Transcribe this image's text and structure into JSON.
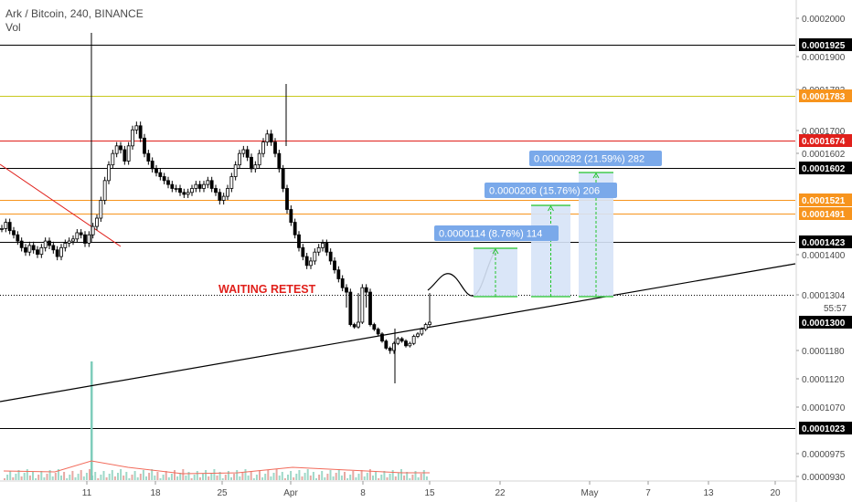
{
  "header": {
    "title": "Ark / Bitcoin, 240, BINANCE",
    "volume_label": "Vol"
  },
  "chart_data": {
    "type": "candlestick",
    "symbol": "Ark / Bitcoin",
    "interval": "240",
    "exchange": "BINANCE",
    "x_ticks": [
      "11",
      "18",
      "25",
      "Apr",
      "8",
      "15",
      "22",
      "May",
      "7",
      "13",
      "20"
    ],
    "y_ticks": [
      "0.0002000",
      "0.0001900",
      "0.0001783",
      "0.0001700",
      "0.0001602",
      "0.0001400",
      "0.0001304",
      "0.0001180",
      "0.0001120",
      "0.0001070",
      "0.0000975",
      "0.0000930"
    ],
    "price_labels": [
      {
        "value": 0.0001925,
        "text": "0.0001925",
        "color": "#000000"
      },
      {
        "value": 0.0001783,
        "text": "0.0001783",
        "color": "#f7941d"
      },
      {
        "value": 0.0001674,
        "text": "0.0001674",
        "color": "#e0201b"
      },
      {
        "value": 0.0001602,
        "text": "0.0001602",
        "color": "#000000"
      },
      {
        "value": 0.0001521,
        "text": "0.0001521",
        "color": "#f7941d"
      },
      {
        "value": 0.0001491,
        "text": "0.0001491",
        "color": "#f7941d"
      },
      {
        "value": 0.0001423,
        "text": "0.0001423",
        "color": "#000000"
      },
      {
        "value": 0.00013,
        "text": "0.0001300",
        "color": "#000000"
      },
      {
        "value": 0.0001023,
        "text": "0.0001023",
        "color": "#000000"
      }
    ],
    "countdown": "55:57",
    "horizontal_lines": [
      {
        "value": 0.0001925,
        "color": "#000000"
      },
      {
        "value": 0.0001783,
        "color": "#c8c81e"
      },
      {
        "value": 0.0001674,
        "color": "#e0201b"
      },
      {
        "value": 0.0001602,
        "color": "#000000"
      },
      {
        "value": 0.0001521,
        "color": "#f7941d"
      },
      {
        "value": 0.0001491,
        "color": "#f7941d"
      },
      {
        "value": 0.0001423,
        "color": "#000000"
      },
      {
        "value": 0.0001304,
        "color": "#000000",
        "style": "dotted"
      },
      {
        "value": 0.0001023,
        "color": "#000000"
      }
    ],
    "annotation": {
      "text": "WAITING RETEST",
      "color": "#e0201b"
    },
    "targets": [
      {
        "label": "0.0000114 (8.76%) 114",
        "percent": 8.76
      },
      {
        "label": "0.0000206 (15.76%) 206",
        "percent": 15.76
      },
      {
        "label": "0.0000282 (21.59%) 282",
        "percent": 21.59
      }
    ],
    "price_series": [
      0.0001455,
      0.000147,
      0.000145,
      0.000144,
      0.0001425,
      0.000141,
      0.00014,
      0.0001415,
      0.0001405,
      0.0001395,
      0.000141,
      0.0001425,
      0.0001415,
      0.0001405,
      0.000139,
      0.000141,
      0.000142,
      0.0001425,
      0.000143,
      0.0001445,
      0.000144,
      0.000142,
      0.000144,
      0.000146,
      0.000148,
      0.000152,
      0.000157,
      0.000161,
      0.000164,
      0.000166,
      0.000165,
      0.000162,
      0.000166,
      0.00017,
      0.000171,
      0.000168,
      0.000164,
      0.000162,
      0.00016,
      0.000159,
      0.000158,
      0.000157,
      0.000156,
      0.000155,
      0.000155,
      0.000154,
      0.0001535,
      0.000154,
      0.000155,
      0.000156,
      0.000155,
      0.000156,
      0.000157,
      0.000155,
      0.000154,
      0.000152,
      0.000153,
      0.000155,
      0.000158,
      0.000161,
      0.000164,
      0.000165,
      0.000163,
      0.00016,
      0.000161,
      0.000164,
      0.000167,
      0.000169,
      0.000167,
      0.000164,
      0.00016,
      0.000155,
      0.00015,
      0.000147,
      0.000144,
      0.000141,
      0.000139,
      0.000137,
      0.000138,
      0.00014,
      0.000141,
      0.000142,
      0.00014,
      0.000138,
      0.000136,
      0.000134,
      0.000132,
      0.000131,
      0.000129,
      0.000128,
      0.00013,
      0.000132,
      0.000131,
      0.000129,
      0.000127,
      0.000125,
      0.000122,
      0.000119,
      0.000118,
      0.000121,
      0.000123,
      0.000122,
      0.00012,
      0.000121,
      0.000124,
      0.000125,
      0.000127,
      0.000129,
      0.00013
    ],
    "volume_spikes": [
      {
        "x_index": 25,
        "relative": 1.0
      }
    ],
    "projection_path": "wave then rise to 0.0001423"
  }
}
